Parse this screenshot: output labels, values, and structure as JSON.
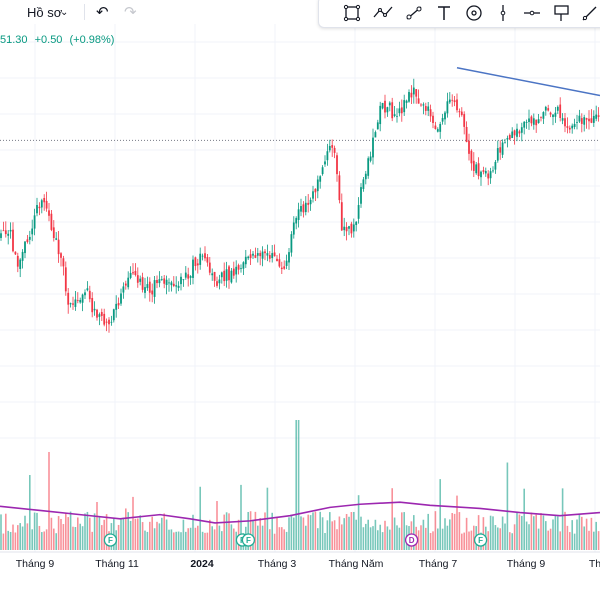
{
  "toolbar": {
    "dropdown_label": "Hồ sơ",
    "undo_icon": "undo-icon",
    "redo_icon": "redo-icon",
    "drawing_tools": [
      "rectangle-select-icon",
      "polyline-icon",
      "trendline-icon",
      "text-icon",
      "circle-target-icon",
      "vertical-line-icon",
      "horizontal-ray-icon",
      "flag-icon",
      "brush-icon"
    ]
  },
  "quote": {
    "price": "51.30",
    "change": "+0.50",
    "change_pct": "(+0.98%)",
    "color": "#089981"
  },
  "colors": {
    "up": "#089981",
    "down": "#f23645",
    "ma": "#9c27b0",
    "trendline": "#4b74c4",
    "marker_F": "#22ab94",
    "marker_D": "#9c27b0"
  },
  "chart_data": {
    "type": "candlestick",
    "x_ticks": [
      {
        "label": "Tháng 9",
        "bold": false
      },
      {
        "label": "Tháng 11",
        "bold": false
      },
      {
        "label": "2024",
        "bold": true
      },
      {
        "label": "Tháng 3",
        "bold": false
      },
      {
        "label": "Tháng Năm",
        "bold": false
      },
      {
        "label": "Tháng 7",
        "bold": false
      },
      {
        "label": "Tháng 9",
        "bold": false
      },
      {
        "label": "Th",
        "bold": false
      }
    ],
    "price_range": [
      34,
      56
    ],
    "reference_price": 50.8,
    "close_path": [
      [
        0,
        44.6
      ],
      [
        10,
        45.0
      ],
      [
        18,
        42.4
      ],
      [
        28,
        44.6
      ],
      [
        36,
        46.2
      ],
      [
        44,
        47.2
      ],
      [
        52,
        45.2
      ],
      [
        60,
        43.6
      ],
      [
        68,
        40.6
      ],
      [
        76,
        40.2
      ],
      [
        84,
        41.4
      ],
      [
        92,
        40.0
      ],
      [
        100,
        39.2
      ],
      [
        108,
        38.6
      ],
      [
        116,
        40.0
      ],
      [
        124,
        41.2
      ],
      [
        132,
        42.0
      ],
      [
        140,
        41.6
      ],
      [
        150,
        41.0
      ],
      [
        160,
        42.0
      ],
      [
        170,
        41.4
      ],
      [
        180,
        41.8
      ],
      [
        190,
        42.4
      ],
      [
        200,
        43.2
      ],
      [
        208,
        42.6
      ],
      [
        216,
        41.8
      ],
      [
        226,
        42.0
      ],
      [
        236,
        42.4
      ],
      [
        246,
        43.2
      ],
      [
        256,
        43.6
      ],
      [
        266,
        43.2
      ],
      [
        276,
        43.0
      ],
      [
        284,
        42.4
      ],
      [
        294,
        45.6
      ],
      [
        304,
        46.6
      ],
      [
        314,
        47.2
      ],
      [
        320,
        48.6
      ],
      [
        328,
        50.2
      ],
      [
        336,
        49.6
      ],
      [
        342,
        45.0
      ],
      [
        350,
        44.8
      ],
      [
        356,
        45.2
      ],
      [
        362,
        47.8
      ],
      [
        368,
        49.2
      ],
      [
        374,
        50.8
      ],
      [
        380,
        52.8
      ],
      [
        388,
        53.2
      ],
      [
        396,
        52.2
      ],
      [
        404,
        53.2
      ],
      [
        410,
        53.8
      ],
      [
        416,
        53.8
      ],
      [
        422,
        53.4
      ],
      [
        430,
        52.4
      ],
      [
        436,
        51.6
      ],
      [
        444,
        52.6
      ],
      [
        452,
        53.8
      ],
      [
        460,
        52.8
      ],
      [
        466,
        51.0
      ],
      [
        472,
        49.4
      ],
      [
        478,
        48.8
      ],
      [
        484,
        48.4
      ],
      [
        490,
        48.8
      ],
      [
        496,
        49.6
      ],
      [
        504,
        50.8
      ],
      [
        512,
        51.2
      ],
      [
        520,
        51.4
      ],
      [
        528,
        51.8
      ],
      [
        536,
        51.8
      ],
      [
        544,
        52.6
      ],
      [
        552,
        52.8
      ],
      [
        560,
        52.6
      ],
      [
        566,
        52.0
      ],
      [
        572,
        51.4
      ],
      [
        580,
        52.0
      ],
      [
        588,
        52.2
      ],
      [
        600,
        52.8
      ]
    ],
    "volume_ma_path": [
      [
        0,
        0.42
      ],
      [
        40,
        0.38
      ],
      [
        80,
        0.34
      ],
      [
        120,
        0.3
      ],
      [
        160,
        0.34
      ],
      [
        190,
        0.3
      ],
      [
        215,
        0.26
      ],
      [
        250,
        0.28
      ],
      [
        290,
        0.33
      ],
      [
        330,
        0.41
      ],
      [
        360,
        0.44
      ],
      [
        400,
        0.46
      ],
      [
        430,
        0.43
      ],
      [
        480,
        0.4
      ],
      [
        520,
        0.36
      ],
      [
        560,
        0.33
      ],
      [
        600,
        0.36
      ]
    ],
    "trendline": [
      [
        457,
        55.5
      ],
      [
        600,
        53.7
      ]
    ],
    "event_markers": [
      {
        "label": "F",
        "position": 0.184
      },
      {
        "label": "F",
        "position": 0.404
      },
      {
        "label": "F",
        "position": 0.414
      },
      {
        "label": "D",
        "position": 0.686
      },
      {
        "label": "F",
        "position": 0.801
      }
    ],
    "grid": true
  }
}
